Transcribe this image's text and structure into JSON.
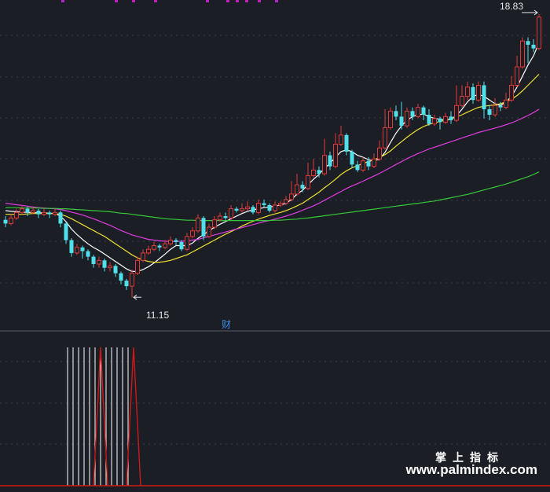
{
  "watermark": {
    "cn": "掌上指标",
    "url": "www.palmindex.com"
  },
  "markers": {
    "cai": "财",
    "high_label": "18.83",
    "low_label": "11.15"
  },
  "colors": {
    "background": "#1b1e25",
    "up": "#e03a3a",
    "down": "#4fe0ea",
    "ma_white": "#ffffff",
    "ma_yellow": "#f0e030",
    "ma_magenta": "#e23ce2",
    "ma_green": "#35c93a",
    "signal_white": "#ffffff",
    "signal_red": "#d01818",
    "gridline": "#3a3e4a",
    "top_marks": "#c020c0"
  },
  "chart_data": [
    {
      "type": "candlestick",
      "panel": "price",
      "ylim": [
        10.6,
        19.0
      ],
      "high": 18.83,
      "low": 11.15,
      "candles": [
        [
          13.25,
          13.15,
          13.35,
          13.05
        ],
        [
          13.15,
          13.3,
          13.4,
          13.1
        ],
        [
          13.3,
          13.45,
          13.55,
          13.25
        ],
        [
          13.45,
          13.55,
          13.65,
          13.4
        ],
        [
          13.55,
          13.45,
          13.6,
          13.35
        ],
        [
          13.45,
          13.5,
          13.6,
          13.4
        ],
        [
          13.5,
          13.4,
          13.55,
          13.3
        ],
        [
          13.4,
          13.45,
          13.55,
          13.35
        ],
        [
          13.45,
          13.4,
          13.5,
          13.3
        ],
        [
          13.4,
          13.45,
          13.55,
          13.35
        ],
        [
          13.45,
          13.15,
          13.5,
          13.05
        ],
        [
          13.15,
          12.7,
          13.2,
          12.6
        ],
        [
          12.7,
          12.35,
          12.75,
          12.25
        ],
        [
          12.35,
          12.5,
          12.6,
          12.3
        ],
        [
          12.5,
          12.4,
          12.55,
          12.2
        ],
        [
          12.4,
          12.25,
          12.45,
          12.15
        ],
        [
          12.25,
          12.05,
          12.3,
          11.95
        ],
        [
          12.05,
          12.15,
          12.25,
          11.95
        ],
        [
          12.15,
          11.95,
          12.2,
          11.85
        ],
        [
          11.95,
          12.0,
          12.1,
          11.85
        ],
        [
          12.0,
          11.8,
          12.05,
          11.7
        ],
        [
          11.8,
          11.6,
          11.85,
          11.5
        ],
        [
          11.6,
          11.45,
          11.65,
          11.35
        ],
        [
          11.45,
          11.8,
          11.9,
          11.15
        ],
        [
          11.8,
          12.15,
          12.25,
          11.75
        ],
        [
          12.15,
          12.35,
          12.45,
          12.1
        ],
        [
          12.35,
          12.45,
          12.55,
          12.3
        ],
        [
          12.45,
          12.55,
          12.65,
          12.4
        ],
        [
          12.55,
          12.5,
          12.6,
          12.4
        ],
        [
          12.5,
          12.6,
          12.7,
          12.45
        ],
        [
          12.6,
          12.7,
          12.8,
          12.55
        ],
        [
          12.7,
          12.65,
          12.75,
          12.55
        ],
        [
          12.65,
          12.45,
          12.7,
          12.4
        ],
        [
          12.45,
          12.8,
          12.9,
          12.4
        ],
        [
          12.8,
          12.95,
          13.05,
          12.75
        ],
        [
          12.95,
          13.3,
          13.4,
          12.9
        ],
        [
          13.3,
          12.8,
          13.35,
          12.7
        ],
        [
          12.8,
          13.05,
          13.15,
          12.75
        ],
        [
          13.05,
          13.25,
          13.35,
          13.0
        ],
        [
          13.25,
          13.35,
          13.45,
          13.2
        ],
        [
          13.35,
          13.3,
          13.45,
          13.25
        ],
        [
          13.3,
          13.55,
          13.65,
          13.25
        ],
        [
          13.55,
          13.5,
          13.6,
          13.45
        ],
        [
          13.5,
          13.55,
          13.7,
          13.45
        ],
        [
          13.55,
          13.6,
          13.75,
          13.5
        ],
        [
          13.6,
          13.45,
          13.65,
          13.4
        ],
        [
          13.45,
          13.7,
          13.8,
          13.4
        ],
        [
          13.7,
          13.65,
          13.8,
          13.6
        ],
        [
          13.65,
          13.5,
          13.7,
          13.45
        ],
        [
          13.5,
          13.65,
          13.75,
          13.45
        ],
        [
          13.65,
          13.7,
          13.75,
          13.6
        ],
        [
          13.7,
          13.8,
          13.9,
          13.65
        ],
        [
          13.8,
          13.95,
          14.3,
          13.75
        ],
        [
          13.95,
          14.2,
          14.5,
          13.9
        ],
        [
          14.2,
          14.1,
          14.3,
          14.0
        ],
        [
          14.1,
          14.45,
          14.8,
          14.05
        ],
        [
          14.45,
          14.6,
          14.9,
          14.4
        ],
        [
          14.6,
          14.5,
          14.7,
          14.4
        ],
        [
          14.5,
          15.0,
          15.45,
          14.45
        ],
        [
          15.0,
          14.7,
          15.1,
          14.6
        ],
        [
          14.7,
          15.3,
          15.6,
          14.65
        ],
        [
          15.3,
          15.55,
          15.8,
          15.25
        ],
        [
          15.55,
          15.1,
          15.6,
          15.0
        ],
        [
          15.1,
          14.75,
          15.15,
          14.65
        ],
        [
          14.75,
          14.6,
          14.85,
          14.55
        ],
        [
          14.6,
          14.85,
          14.95,
          14.55
        ],
        [
          14.85,
          14.7,
          14.95,
          14.6
        ],
        [
          14.7,
          14.9,
          15.05,
          14.65
        ],
        [
          14.9,
          15.2,
          15.4,
          14.85
        ],
        [
          15.2,
          15.75,
          16.25,
          15.15
        ],
        [
          15.75,
          16.2,
          16.3,
          15.7
        ],
        [
          16.2,
          16.05,
          16.35,
          15.95
        ],
        [
          16.05,
          15.8,
          16.45,
          15.7
        ],
        [
          15.8,
          16.2,
          16.3,
          15.75
        ],
        [
          16.2,
          16.05,
          16.3,
          15.95
        ],
        [
          16.05,
          16.3,
          16.4,
          16.0
        ],
        [
          16.3,
          16.1,
          16.35,
          15.95
        ],
        [
          16.1,
          15.85,
          16.25,
          15.8
        ],
        [
          15.85,
          16.0,
          16.1,
          15.8
        ],
        [
          16.0,
          15.9,
          16.05,
          15.7
        ],
        [
          15.9,
          16.05,
          16.15,
          15.85
        ],
        [
          16.05,
          15.95,
          16.2,
          15.85
        ],
        [
          15.95,
          16.35,
          16.9,
          15.9
        ],
        [
          16.35,
          16.6,
          16.9,
          16.3
        ],
        [
          16.6,
          16.85,
          17.0,
          16.5
        ],
        [
          16.85,
          16.5,
          16.95,
          16.4
        ],
        [
          16.5,
          16.9,
          17.0,
          16.45
        ],
        [
          16.9,
          16.25,
          17.0,
          16.0
        ],
        [
          16.25,
          16.1,
          16.35,
          15.95
        ],
        [
          16.1,
          16.35,
          16.55,
          16.05
        ],
        [
          16.35,
          16.3,
          16.45,
          16.2
        ],
        [
          16.3,
          16.5,
          16.7,
          16.25
        ],
        [
          16.5,
          16.9,
          17.15,
          16.45
        ],
        [
          16.9,
          17.4,
          17.7,
          16.85
        ],
        [
          17.4,
          18.1,
          18.2,
          17.35
        ],
        [
          18.1,
          18.0,
          18.2,
          17.5
        ],
        [
          18.0,
          17.9,
          18.15,
          17.8
        ],
        [
          17.9,
          18.75,
          18.83,
          17.85
        ]
      ],
      "ma_series": [
        {
          "values": [
            13.5,
            13.48,
            13.47,
            13.46,
            13.45,
            13.45,
            13.44,
            13.44,
            13.43,
            13.42,
            13.35,
            13.2,
            13.0,
            12.85,
            12.72,
            12.6,
            12.5,
            12.42,
            12.32,
            12.22,
            12.12,
            12.02,
            11.92,
            11.85,
            11.85,
            11.9,
            11.98,
            12.08,
            12.2,
            12.32,
            12.45,
            12.55,
            12.55,
            12.55,
            12.62,
            12.75,
            12.85,
            12.95,
            13.05,
            13.13,
            13.2,
            13.28,
            13.35,
            13.42,
            13.48,
            13.52,
            13.55,
            13.58,
            13.6,
            13.62,
            13.65,
            13.7,
            13.8,
            13.95,
            14.05,
            14.2,
            14.35,
            14.48,
            14.65,
            14.78,
            14.95,
            15.1,
            15.15,
            15.1,
            15.0,
            14.95,
            14.88,
            14.85,
            14.9,
            15.08,
            15.35,
            15.6,
            15.8,
            15.95,
            16.05,
            16.1,
            16.12,
            16.05,
            16.0,
            15.98,
            15.95,
            15.98,
            16.08,
            16.25,
            16.45,
            16.6,
            16.65,
            16.6,
            16.5,
            16.4,
            16.35,
            16.45,
            16.6,
            16.85,
            17.15,
            17.45,
            17.7,
            18.05
          ]
        },
        {
          "values": [
            13.4,
            13.4,
            13.4,
            13.4,
            13.41,
            13.42,
            13.42,
            13.42,
            13.42,
            13.42,
            13.4,
            13.35,
            13.28,
            13.2,
            13.12,
            13.04,
            12.96,
            12.88,
            12.8,
            12.7,
            12.6,
            12.5,
            12.4,
            12.3,
            12.22,
            12.16,
            12.12,
            12.1,
            12.1,
            12.12,
            12.15,
            12.2,
            12.25,
            12.3,
            12.38,
            12.46,
            12.54,
            12.62,
            12.7,
            12.78,
            12.86,
            12.93,
            13.0,
            13.08,
            13.15,
            13.21,
            13.27,
            13.32,
            13.37,
            13.41,
            13.45,
            13.5,
            13.56,
            13.63,
            13.7,
            13.8,
            13.9,
            14.0,
            14.12,
            14.23,
            14.35,
            14.48,
            14.58,
            14.66,
            14.72,
            14.78,
            14.83,
            14.88,
            14.94,
            15.02,
            15.12,
            15.25,
            15.37,
            15.49,
            15.6,
            15.7,
            15.78,
            15.84,
            15.88,
            15.92,
            15.95,
            15.99,
            16.04,
            16.1,
            16.17,
            16.24,
            16.3,
            16.33,
            16.35,
            16.37,
            16.4,
            16.45,
            16.52,
            16.62,
            16.75,
            16.9,
            17.05,
            17.2
          ]
        },
        {
          "values": [
            13.7,
            13.68,
            13.66,
            13.64,
            13.62,
            13.6,
            13.58,
            13.57,
            13.56,
            13.55,
            13.53,
            13.5,
            13.46,
            13.42,
            13.38,
            13.33,
            13.28,
            13.22,
            13.16,
            13.1,
            13.03,
            12.96,
            12.9,
            12.84,
            12.8,
            12.76,
            12.72,
            12.7,
            12.68,
            12.67,
            12.66,
            12.66,
            12.67,
            12.68,
            12.7,
            12.72,
            12.76,
            12.8,
            12.84,
            12.88,
            12.92,
            12.96,
            13.0,
            13.04,
            13.08,
            13.12,
            13.16,
            13.2,
            13.23,
            13.27,
            13.31,
            13.35,
            13.4,
            13.45,
            13.51,
            13.57,
            13.63,
            13.7,
            13.78,
            13.86,
            13.94,
            14.02,
            14.1,
            14.17,
            14.23,
            14.3,
            14.37,
            14.44,
            14.51,
            14.59,
            14.67,
            14.75,
            14.83,
            14.91,
            14.98,
            15.05,
            15.11,
            15.17,
            15.22,
            15.27,
            15.32,
            15.37,
            15.42,
            15.47,
            15.52,
            15.57,
            15.62,
            15.66,
            15.7,
            15.74,
            15.78,
            15.83,
            15.88,
            15.94,
            16.01,
            16.08,
            16.16,
            16.25
          ]
        },
        {
          "values": [
            13.58,
            13.58,
            13.58,
            13.57,
            13.57,
            13.57,
            13.57,
            13.56,
            13.56,
            13.56,
            13.55,
            13.55,
            13.54,
            13.53,
            13.52,
            13.51,
            13.5,
            13.49,
            13.48,
            13.47,
            13.45,
            13.43,
            13.42,
            13.4,
            13.38,
            13.36,
            13.34,
            13.32,
            13.3,
            13.28,
            13.27,
            13.26,
            13.25,
            13.24,
            13.24,
            13.23,
            13.23,
            13.23,
            13.23,
            13.23,
            13.23,
            13.23,
            13.23,
            13.23,
            13.23,
            13.23,
            13.23,
            13.23,
            13.23,
            13.24,
            13.24,
            13.25,
            13.26,
            13.27,
            13.29,
            13.3,
            13.32,
            13.34,
            13.36,
            13.38,
            13.4,
            13.42,
            13.44,
            13.46,
            13.48,
            13.5,
            13.52,
            13.54,
            13.56,
            13.58,
            13.6,
            13.62,
            13.64,
            13.66,
            13.68,
            13.7,
            13.72,
            13.74,
            13.76,
            13.79,
            13.82,
            13.85,
            13.88,
            13.91,
            13.94,
            13.98,
            14.02,
            14.06,
            14.1,
            14.14,
            14.18,
            14.22,
            14.27,
            14.32,
            14.37,
            14.42,
            14.48,
            14.55
          ]
        }
      ]
    },
    {
      "type": "bar",
      "panel": "signal",
      "white_indices": [
        11,
        12,
        13,
        14,
        15,
        16,
        17,
        18,
        19,
        20,
        21,
        22
      ],
      "red_indices": [
        17,
        23
      ]
    }
  ]
}
